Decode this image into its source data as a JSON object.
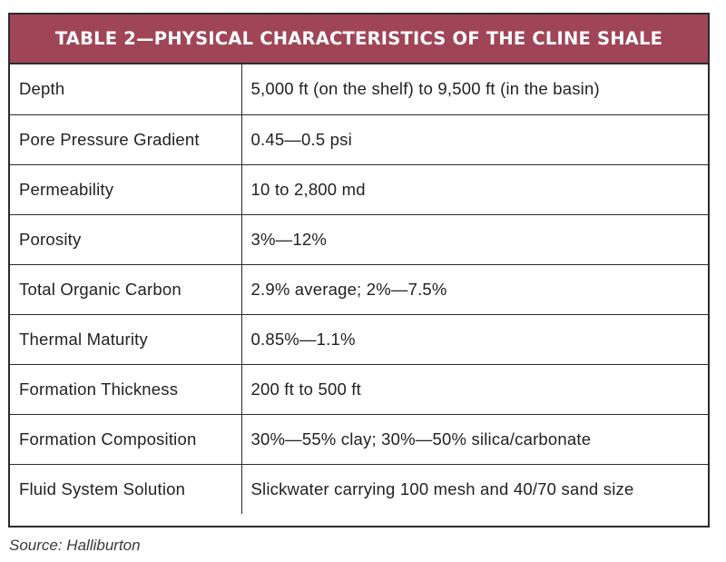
{
  "table": {
    "title": "TABLE 2—PHYSICAL CHARACTERISTICS OF THE CLINE SHALE",
    "rows": [
      {
        "label": "Depth",
        "value": "5,000 ft (on the shelf) to 9,500 ft (in the basin)"
      },
      {
        "label": "Pore Pressure Gradient",
        "value": "0.45—0.5 psi"
      },
      {
        "label": "Permeability",
        "value": "10 to 2,800 md"
      },
      {
        "label": "Porosity",
        "value": "3%—12%"
      },
      {
        "label": "Total Organic Carbon",
        "value": "2.9% average; 2%—7.5%"
      },
      {
        "label": "Thermal Maturity",
        "value": "0.85%—1.1%"
      },
      {
        "label": "Formation Thickness",
        "value": "200 ft to 500 ft"
      },
      {
        "label": "Formation Composition",
        "value": "30%—55% clay; 30%—50% silica/carbonate"
      },
      {
        "label": "Fluid System Solution",
        "value": "Slickwater carrying 100 mesh and 40/70 sand size"
      }
    ]
  },
  "source": "Source: Halliburton",
  "colors": {
    "header_background": "#a04557",
    "header_text": "#ffffff",
    "border": "#2b2b2b"
  }
}
